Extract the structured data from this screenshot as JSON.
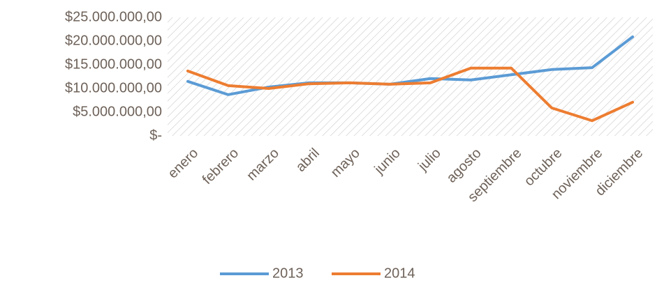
{
  "chart_data": {
    "type": "line",
    "categories": [
      "enero",
      "febrero",
      "marzo",
      "abril",
      "mayo",
      "junio",
      "julio",
      "agosto",
      "septiembre",
      "octubre",
      "noviembre",
      "diciembre"
    ],
    "series": [
      {
        "name": "2013",
        "color": "#5b9bd5",
        "values": [
          11500000,
          8700000,
          10300000,
          11200000,
          11200000,
          10900000,
          12100000,
          11800000,
          12900000,
          14000000,
          14400000,
          20900000
        ]
      },
      {
        "name": "2014",
        "color": "#ed7d31",
        "values": [
          13700000,
          10600000,
          10000000,
          11000000,
          11200000,
          10900000,
          11200000,
          14300000,
          14300000,
          5900000,
          3200000,
          7100000
        ]
      }
    ],
    "ylim": [
      0,
      25000000
    ],
    "yticks": [
      {
        "value": 0,
        "label": "$-"
      },
      {
        "value": 5000000,
        "label": "$5.000.000,00"
      },
      {
        "value": 10000000,
        "label": "$10.000.000,00"
      },
      {
        "value": 15000000,
        "label": "$15.000.000,00"
      },
      {
        "value": 20000000,
        "label": "$20.000.000,00"
      },
      {
        "value": 25000000,
        "label": "$25.000.000,00"
      }
    ],
    "legend": "bottom"
  }
}
